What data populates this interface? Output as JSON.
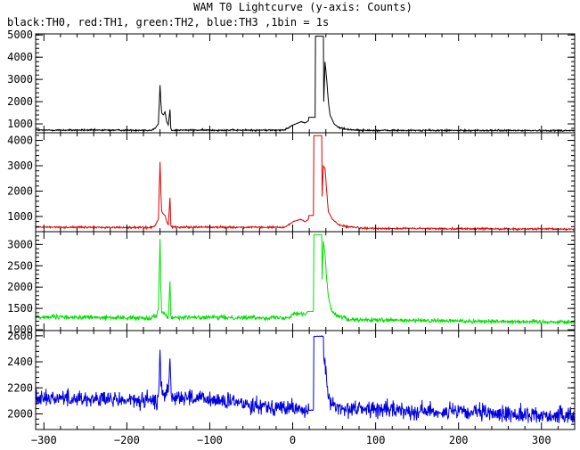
{
  "chart_data": [
    {
      "type": "line",
      "title": "WAM T0 Lightcurve (y-axis: Counts)",
      "subtitle": "black:TH0, red:TH1, green:TH2, blue:TH3 ,1bin = 1s",
      "xlabel": "",
      "ylabel": "",
      "xlim": [
        -310,
        340
      ],
      "x_ticks": [
        -300,
        -200,
        -100,
        0,
        100,
        200,
        300
      ],
      "grid": false,
      "legend": "none",
      "panels": [
        {
          "name": "TH0",
          "color": "#000000",
          "ylim": [
            600,
            5050
          ],
          "yticks": [
            1000,
            2000,
            3000,
            4000,
            5000
          ],
          "baseline": 720,
          "noise": 25,
          "trend": -20,
          "keypoints": [
            [
              -170,
              720
            ],
            [
              -166,
              800
            ],
            [
              -162,
              1000
            ],
            [
              -160,
              2750
            ],
            [
              -159,
              2000
            ],
            [
              -158,
              1500
            ],
            [
              -156,
              1400
            ],
            [
              -154,
              1550
            ],
            [
              -152,
              1100
            ],
            [
              -150,
              950
            ],
            [
              -148,
              1650
            ],
            [
              -147,
              800
            ],
            [
              -146,
              720
            ],
            [
              -10,
              720
            ],
            [
              0,
              950
            ],
            [
              10,
              1100
            ],
            [
              15,
              1050
            ],
            [
              19,
              1150
            ],
            [
              19.5,
              1300
            ],
            [
              27,
              1300
            ],
            [
              27.5,
              4950
            ],
            [
              37,
              4950
            ],
            [
              37.5,
              2000
            ],
            [
              39,
              3800
            ],
            [
              41,
              3000
            ],
            [
              43,
              2000
            ],
            [
              45,
              1400
            ],
            [
              50,
              1000
            ],
            [
              55,
              850
            ],
            [
              65,
              760
            ],
            [
              80,
              720
            ]
          ]
        },
        {
          "name": "TH1",
          "color": "#e00000",
          "ylim": [
            400,
            4300
          ],
          "yticks": [
            1000,
            2000,
            3000,
            4000
          ],
          "baseline": 580,
          "noise": 25,
          "trend": -80,
          "keypoints": [
            [
              -170,
              580
            ],
            [
              -166,
              650
            ],
            [
              -162,
              900
            ],
            [
              -160,
              3150
            ],
            [
              -159,
              2000
            ],
            [
              -158,
              1200
            ],
            [
              -156,
              1100
            ],
            [
              -154,
              1050
            ],
            [
              -152,
              800
            ],
            [
              -150,
              700
            ],
            [
              -148,
              1750
            ],
            [
              -147,
              650
            ],
            [
              -146,
              590
            ],
            [
              -10,
              580
            ],
            [
              0,
              800
            ],
            [
              10,
              900
            ],
            [
              15,
              800
            ],
            [
              19,
              900
            ],
            [
              19.5,
              1050
            ],
            [
              25,
              1050
            ],
            [
              25.5,
              4200
            ],
            [
              35,
              4200
            ],
            [
              35.5,
              1800
            ],
            [
              37,
              3000
            ],
            [
              39,
              2900
            ],
            [
              41,
              2000
            ],
            [
              43,
              1200
            ],
            [
              48,
              900
            ],
            [
              55,
              700
            ],
            [
              65,
              600
            ],
            [
              80,
              580
            ]
          ]
        },
        {
          "name": "TH2",
          "color": "#00e000",
          "ylim": [
            980,
            3300
          ],
          "yticks": [
            1000,
            1500,
            2000,
            2500,
            3000
          ],
          "baseline": 1300,
          "noise": 35,
          "trend": -120,
          "keypoints": [
            [
              -170,
              1300
            ],
            [
              -164,
              1350
            ],
            [
              -162,
              1500
            ],
            [
              -160,
              3150
            ],
            [
              -159,
              2000
            ],
            [
              -158,
              1450
            ],
            [
              -150,
              1300
            ],
            [
              -148,
              2150
            ],
            [
              -147,
              1350
            ],
            [
              -146,
              1300
            ],
            [
              -5,
              1300
            ],
            [
              0,
              1400
            ],
            [
              10,
              1400
            ],
            [
              15,
              1380
            ],
            [
              19,
              1420
            ],
            [
              19.5,
              1450
            ],
            [
              25,
              1450
            ],
            [
              25.5,
              3250
            ],
            [
              35,
              3250
            ],
            [
              35.5,
              2200
            ],
            [
              37,
              3100
            ],
            [
              39,
              2800
            ],
            [
              41,
              2200
            ],
            [
              43,
              1800
            ],
            [
              47,
              1450
            ],
            [
              55,
              1330
            ],
            [
              65,
              1300
            ]
          ]
        },
        {
          "name": "TH3",
          "color": "#0000e0",
          "ylim": [
            1880,
            2640
          ],
          "yticks": [
            2000,
            2200,
            2400,
            2600
          ],
          "baseline": 2130,
          "noise": 45,
          "trend": -150,
          "keypoints": [
            [
              -163,
              2150
            ],
            [
              -161,
              2250
            ],
            [
              -160,
              2510
            ],
            [
              -159,
              2250
            ],
            [
              -156,
              2150
            ],
            [
              -150,
              2200
            ],
            [
              -148,
              2450
            ],
            [
              -147,
              2200
            ],
            [
              -146,
              2150
            ],
            [
              19.5,
              2050
            ],
            [
              25,
              2050
            ],
            [
              25.5,
              2620
            ],
            [
              37,
              2620
            ],
            [
              37.5,
              2450
            ],
            [
              40,
              2350
            ],
            [
              42,
              2200
            ],
            [
              45,
              2100
            ],
            [
              55,
              2080
            ]
          ]
        }
      ]
    }
  ]
}
